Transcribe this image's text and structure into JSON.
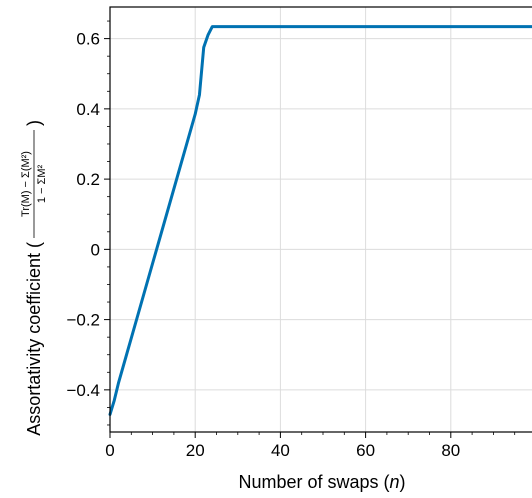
{
  "chart_data": {
    "type": "line",
    "xlabel_text": "Number of swaps (",
    "xlabel_var": "n",
    "xlabel_close": ")",
    "ylabel_text": "Assortativity coefficient (",
    "ylabel_numerator": "Tr(M) − Σ(M²)",
    "ylabel_denominator": "1 − ΣM²",
    "ylabel_close": ")",
    "xlim": [
      0,
      100
    ],
    "ylim": [
      -0.52,
      0.69
    ],
    "xticks": [
      0,
      20,
      40,
      60,
      80
    ],
    "xtick_labels": [
      "0",
      "20",
      "40",
      "60",
      "80"
    ],
    "yticks": [
      -0.4,
      -0.2,
      0,
      0.2,
      0.4,
      0.6
    ],
    "ytick_labels": [
      "−0.4",
      "−0.2",
      "0",
      "0.2",
      "0.4",
      "0.6"
    ],
    "grid": true,
    "series": [
      {
        "color": "#0072b2",
        "x": [
          0,
          1,
          2,
          4,
          6,
          8,
          10,
          12,
          14,
          16,
          18,
          20,
          21,
          22,
          23,
          24,
          30,
          40,
          50,
          60,
          70,
          80,
          90,
          100
        ],
        "y": [
          -0.47,
          -0.43,
          -0.38,
          -0.295,
          -0.21,
          -0.125,
          -0.04,
          0.045,
          0.13,
          0.215,
          0.3,
          0.385,
          0.44,
          0.575,
          0.61,
          0.634,
          0.634,
          0.634,
          0.634,
          0.634,
          0.634,
          0.634,
          0.634,
          0.634
        ]
      }
    ]
  }
}
